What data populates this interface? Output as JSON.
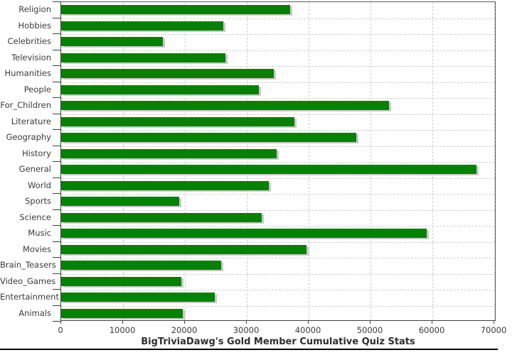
{
  "chart_data": {
    "type": "bar",
    "orientation": "horizontal",
    "title": "BigTriviaDawg's Gold Member Cumulative Quiz Stats",
    "categories": [
      "Religion",
      "Hobbies",
      "Celebrities",
      "Television",
      "Humanities",
      "People",
      "For_Children",
      "Literature",
      "Geography",
      "History",
      "General",
      "World",
      "Sports",
      "Science",
      "Music",
      "Movies",
      "Brain_Teasers",
      "Video_Games",
      "Entertainment",
      "Animals"
    ],
    "values": [
      37000,
      26200,
      16400,
      26600,
      34400,
      31900,
      53000,
      37700,
      47700,
      34800,
      67100,
      33600,
      19100,
      32400,
      59100,
      39700,
      25900,
      19400,
      24800,
      19700
    ],
    "xlabel": "",
    "ylabel": "",
    "xlim": [
      0,
      70000
    ],
    "xticks": [
      0,
      10000,
      20000,
      30000,
      40000,
      50000,
      60000,
      70000
    ],
    "xtick_labels": [
      "0",
      "10000",
      "20000",
      "30000",
      "40000",
      "50000",
      "60000",
      "70000"
    ],
    "grid": true,
    "legend": "none",
    "bar_color": "#068106",
    "shadow_color": "#c9c9c9",
    "gridline_color": "#cfcfcf",
    "text_color": "#3a3a3a"
  }
}
